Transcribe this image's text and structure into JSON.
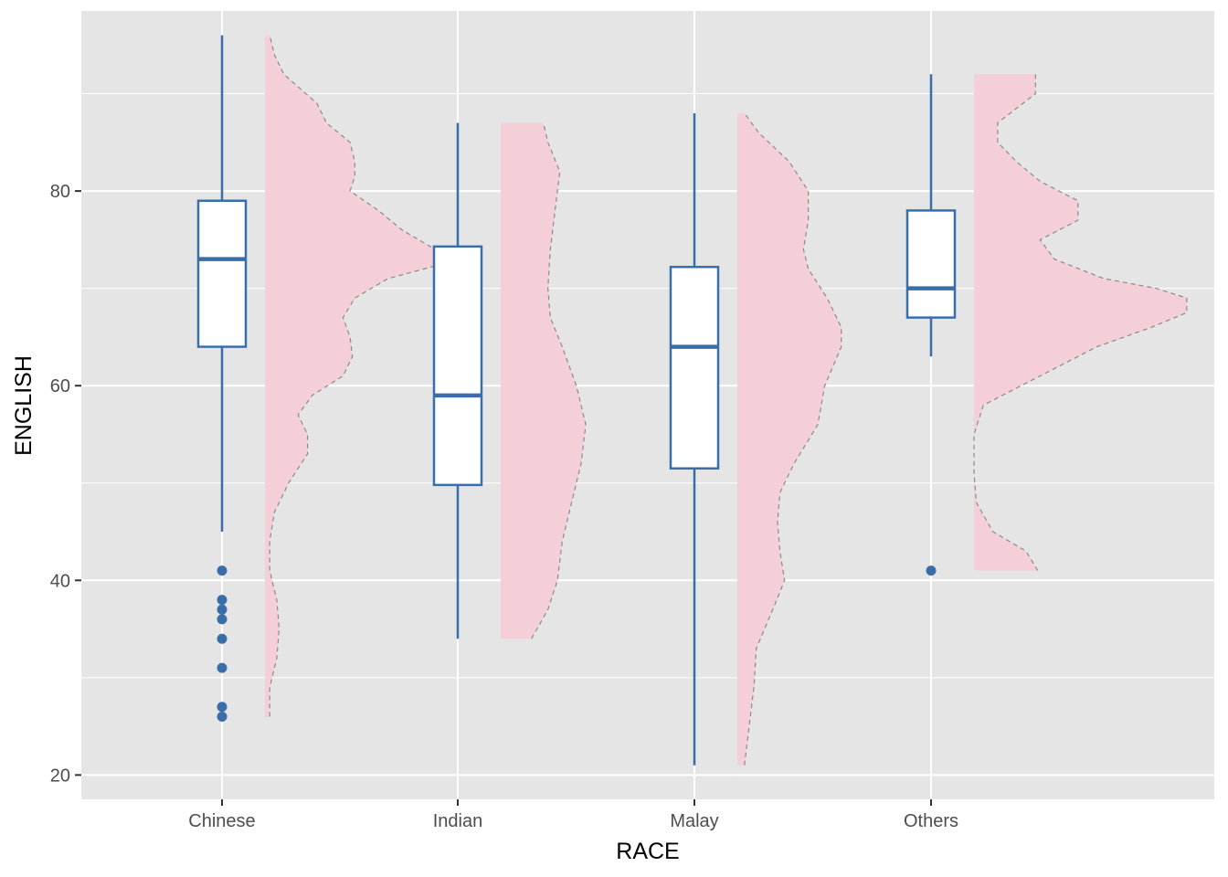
{
  "chart_data": {
    "type": "boxplot",
    "xlabel": "RACE",
    "ylabel": "ENGLISH",
    "categories": [
      "Chinese",
      "Indian",
      "Malay",
      "Others"
    ],
    "ylim": [
      17.5,
      98.5
    ],
    "yticks": [
      20,
      40,
      60,
      80
    ],
    "grid": true,
    "colors": {
      "panel_background": "#e5e5e5",
      "grid": "#ffffff",
      "box_outline": "#3a6ea8",
      "box_fill": "#ffffff",
      "density_fill": "#f5cfd8",
      "density_outline": "#8a8a8a"
    },
    "boxes": [
      {
        "category": "Chinese",
        "whisker_low": 45,
        "q1": 64,
        "median": 73,
        "q3": 79,
        "whisker_high": 96,
        "outliers": [
          41,
          38,
          37,
          36,
          34,
          31,
          27,
          26
        ]
      },
      {
        "category": "Indian",
        "whisker_low": 34,
        "q1": 49.8,
        "median": 59,
        "q3": 74.3,
        "whisker_high": 87,
        "outliers": []
      },
      {
        "category": "Malay",
        "whisker_low": 21,
        "q1": 51.5,
        "median": 64,
        "q3": 72.2,
        "whisker_high": 88,
        "outliers": []
      },
      {
        "category": "Others",
        "whisker_low": 63,
        "q1": 67,
        "median": 70,
        "q3": 78,
        "whisker_high": 92,
        "outliers": [
          41
        ]
      }
    ],
    "densities": [
      {
        "category": "Chinese",
        "profile": [
          [
            26,
            0.02
          ],
          [
            29,
            0.02
          ],
          [
            32,
            0.05
          ],
          [
            35,
            0.06
          ],
          [
            38,
            0.05
          ],
          [
            41,
            0.02
          ],
          [
            44,
            0.02
          ],
          [
            47,
            0.04
          ],
          [
            50,
            0.1
          ],
          [
            53,
            0.18
          ],
          [
            55,
            0.18
          ],
          [
            57,
            0.14
          ],
          [
            59,
            0.2
          ],
          [
            61,
            0.33
          ],
          [
            63,
            0.37
          ],
          [
            65,
            0.36
          ],
          [
            67,
            0.33
          ],
          [
            69,
            0.38
          ],
          [
            71,
            0.52
          ],
          [
            72.5,
            0.75
          ],
          [
            74,
            0.72
          ],
          [
            76,
            0.58
          ],
          [
            78,
            0.48
          ],
          [
            80,
            0.36
          ],
          [
            81.5,
            0.38
          ],
          [
            83,
            0.38
          ],
          [
            85,
            0.36
          ],
          [
            87,
            0.26
          ],
          [
            89,
            0.22
          ],
          [
            92,
            0.08
          ],
          [
            94,
            0.04
          ],
          [
            96,
            0.02
          ]
        ]
      },
      {
        "category": "Indian",
        "profile": [
          [
            34,
            0.13
          ],
          [
            37,
            0.2
          ],
          [
            40,
            0.24
          ],
          [
            44,
            0.26
          ],
          [
            48,
            0.3
          ],
          [
            52,
            0.34
          ],
          [
            56,
            0.36
          ],
          [
            60,
            0.32
          ],
          [
            64,
            0.26
          ],
          [
            67,
            0.21
          ],
          [
            70,
            0.2
          ],
          [
            74,
            0.21
          ],
          [
            78,
            0.23
          ],
          [
            82,
            0.25
          ],
          [
            85,
            0.2
          ],
          [
            87,
            0.18
          ]
        ]
      },
      {
        "category": "Malay",
        "profile": [
          [
            21,
            0.03
          ],
          [
            25,
            0.05
          ],
          [
            29,
            0.07
          ],
          [
            33,
            0.08
          ],
          [
            37,
            0.15
          ],
          [
            40,
            0.2
          ],
          [
            43,
            0.18
          ],
          [
            46,
            0.17
          ],
          [
            49,
            0.18
          ],
          [
            52,
            0.24
          ],
          [
            56,
            0.34
          ],
          [
            60,
            0.37
          ],
          [
            64,
            0.44
          ],
          [
            66,
            0.44
          ],
          [
            69,
            0.38
          ],
          [
            72,
            0.3
          ],
          [
            74,
            0.28
          ],
          [
            77,
            0.3
          ],
          [
            80,
            0.3
          ],
          [
            83,
            0.22
          ],
          [
            86,
            0.09
          ],
          [
            88,
            0.03
          ]
        ]
      },
      {
        "category": "Others",
        "profile": [
          [
            41,
            0.27
          ],
          [
            43,
            0.22
          ],
          [
            45,
            0.08
          ],
          [
            48,
            0.01
          ],
          [
            51,
            0.0
          ],
          [
            55,
            0.0
          ],
          [
            58,
            0.04
          ],
          [
            61,
            0.28
          ],
          [
            64,
            0.52
          ],
          [
            66,
            0.75
          ],
          [
            67.5,
            0.9
          ],
          [
            69,
            0.9
          ],
          [
            70,
            0.77
          ],
          [
            71,
            0.55
          ],
          [
            73,
            0.34
          ],
          [
            75,
            0.28
          ],
          [
            77,
            0.44
          ],
          [
            79,
            0.44
          ],
          [
            81,
            0.28
          ],
          [
            83,
            0.18
          ],
          [
            85,
            0.1
          ],
          [
            87,
            0.1
          ],
          [
            90,
            0.26
          ],
          [
            92,
            0.26
          ]
        ]
      }
    ]
  }
}
